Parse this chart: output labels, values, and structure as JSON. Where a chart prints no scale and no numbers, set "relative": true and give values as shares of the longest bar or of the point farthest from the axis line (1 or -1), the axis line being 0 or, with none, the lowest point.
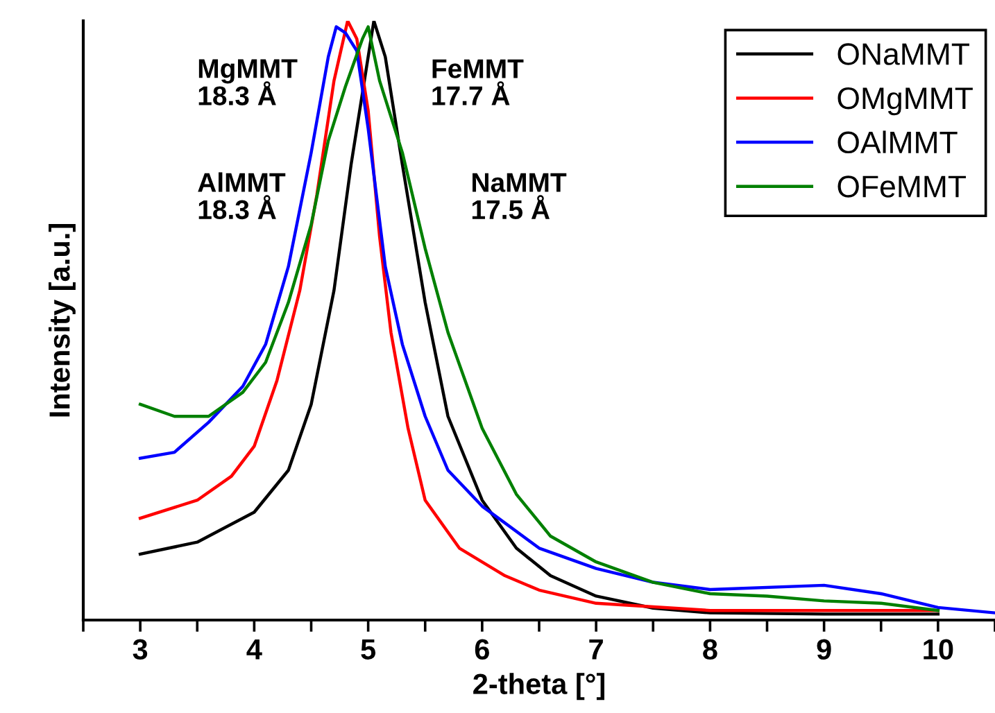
{
  "chart_data": {
    "type": "line",
    "relative": true,
    "xlabel": "2-theta [°]",
    "ylabel": "Intensity [a.u.]",
    "xlim": [
      2.5,
      10.5
    ],
    "xticks": [
      {
        "value": 2.5,
        "label": null
      },
      3,
      {
        "value": 3.5,
        "label": null
      },
      4,
      {
        "value": 4.5,
        "label": null
      },
      5,
      {
        "value": 5.5,
        "label": null
      },
      6,
      {
        "value": 6.5,
        "label": null
      },
      7,
      {
        "value": 7.5,
        "label": null
      },
      8,
      {
        "value": 8.5,
        "label": null
      },
      9,
      {
        "value": 9.5,
        "label": null
      },
      10,
      {
        "value": 10.5,
        "label": null
      }
    ],
    "legend": "top right",
    "grid": false,
    "marker": "none",
    "line_style": "solid",
    "annotations": [
      "MgMMT\n18.3 Å",
      "AlMMT\n18.3 Å",
      "FeMMT\n17.7 Å",
      "NaMMT\n17.5 Å"
    ],
    "series": [
      {
        "name": "ONaMMT",
        "color": "#000000",
        "x": [
          3,
          3.5,
          4,
          4.3,
          4.5,
          4.7,
          4.85,
          5.0,
          5.05,
          5.15,
          5.3,
          5.5,
          5.7,
          6.0,
          6.3,
          6.6,
          7.0,
          7.5,
          8,
          9,
          10
        ],
        "values": [
          0.11,
          0.13,
          0.18,
          0.25,
          0.36,
          0.55,
          0.76,
          0.94,
          1.0,
          0.94,
          0.76,
          0.53,
          0.34,
          0.2,
          0.12,
          0.074,
          0.04,
          0.02,
          0.012,
          0.01,
          0.01
        ]
      },
      {
        "name": "OMgMMT",
        "color": "#ff0000",
        "x": [
          3,
          3.5,
          3.8,
          4.0,
          4.2,
          4.4,
          4.55,
          4.7,
          4.82,
          4.9,
          5.0,
          5.1,
          5.2,
          5.35,
          5.5,
          5.8,
          6.2,
          6.5,
          7,
          8,
          9,
          10
        ],
        "values": [
          0.17,
          0.2,
          0.24,
          0.29,
          0.4,
          0.55,
          0.71,
          0.9,
          1.0,
          0.97,
          0.85,
          0.64,
          0.48,
          0.32,
          0.2,
          0.12,
          0.074,
          0.05,
          0.028,
          0.016,
          0.016,
          0.016
        ]
      },
      {
        "name": "OAlMMT",
        "color": "#0000ff",
        "x": [
          3,
          3.3,
          3.6,
          3.9,
          4.1,
          4.3,
          4.5,
          4.65,
          4.72,
          4.8,
          4.9,
          5.0,
          5.15,
          5.3,
          5.5,
          5.7,
          6.0,
          6.5,
          7,
          7.5,
          8,
          9,
          9.5,
          10,
          10.5
        ],
        "values": [
          0.27,
          0.28,
          0.33,
          0.39,
          0.46,
          0.59,
          0.78,
          0.94,
          0.99,
          0.98,
          0.95,
          0.82,
          0.59,
          0.46,
          0.34,
          0.25,
          0.19,
          0.12,
          0.086,
          0.063,
          0.051,
          0.058,
          0.044,
          0.021,
          0.012
        ]
      },
      {
        "name": "OFeMMT",
        "color": "#008000",
        "x": [
          3,
          3.3,
          3.6,
          3.9,
          4.1,
          4.3,
          4.5,
          4.65,
          4.8,
          4.95,
          5.0,
          5.1,
          5.3,
          5.5,
          5.7,
          6.0,
          6.3,
          6.6,
          7,
          7.5,
          8,
          8.5,
          9,
          9.5,
          10
        ],
        "values": [
          0.36,
          0.34,
          0.34,
          0.38,
          0.43,
          0.53,
          0.66,
          0.8,
          0.89,
          0.97,
          0.99,
          0.9,
          0.78,
          0.62,
          0.48,
          0.32,
          0.21,
          0.14,
          0.097,
          0.063,
          0.044,
          0.04,
          0.032,
          0.028,
          0.016
        ]
      }
    ]
  }
}
